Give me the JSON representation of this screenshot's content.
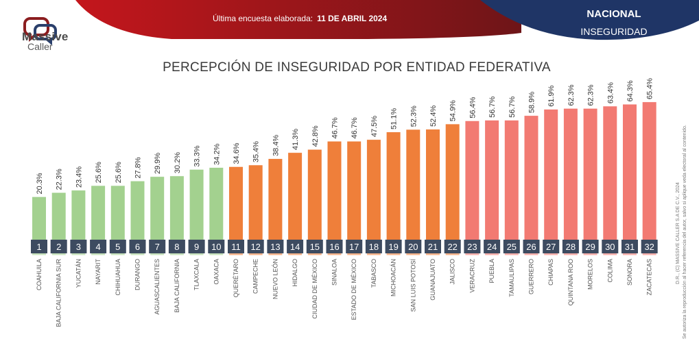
{
  "header": {
    "brand_line1": "Massive",
    "brand_line2": "Caller",
    "survey_label": "Última encuesta elaborada:",
    "survey_date": "11 DE ABRIL 2024",
    "scope": "NACIONAL",
    "topic": "INSEGURIDAD",
    "colors": {
      "red": "#b3171c",
      "navy": "#1f3566"
    }
  },
  "footer_note": {
    "line1": "D.R., (C) MASSIVE CALLER S.A DE C.V., 2024",
    "line2": "Se autoriza la reproducción al hacer referencia del autor, salvo si aplique veda electoral al contenido."
  },
  "chart_data": {
    "type": "bar",
    "title": "PERCEPCIÓN DE INSEGURIDAD POR ENTIDAD FEDERATIVA",
    "xlabel": "",
    "ylabel": "",
    "ylim": [
      0,
      70
    ],
    "grid": false,
    "value_suffix": "%",
    "color_groups": [
      {
        "from_rank": 1,
        "to_rank": 10,
        "color": "#a3d18f"
      },
      {
        "from_rank": 11,
        "to_rank": 22,
        "color": "#ef7f3a"
      },
      {
        "from_rank": 23,
        "to_rank": 32,
        "color": "#f27a72"
      }
    ],
    "rank_badge_color": "#3d4b60",
    "ranks": [
      "1",
      "2",
      "3",
      "4",
      "5",
      "6",
      "7",
      "8",
      "9",
      "10",
      "11",
      "12",
      "13",
      "14",
      "15",
      "16",
      "17",
      "18",
      "19",
      "20",
      "21",
      "22",
      "23",
      "24",
      "25",
      "26",
      "27",
      "28",
      "29",
      "30",
      "31",
      "32"
    ],
    "categories": [
      "COAHUILA",
      "BAJA CALIFORNIA SUR",
      "YUCATÁN",
      "NAYARIT",
      "CHIHUAHUA",
      "DURANGO",
      "AGUASCALIENTES",
      "BAJA CALIFORNIA",
      "TLAXCALA",
      "OAXACA",
      "QUERÉTARO",
      "CAMPECHE",
      "NUEVO LEÓN",
      "HIDALGO",
      "CIUDAD DE MÉXICO",
      "SINALOA",
      "ESTADO DE MÉXICO",
      "TABASCO",
      "MICHOACÁN",
      "SAN LUIS POTOSÍ",
      "GUANAJUATO",
      "JALISCO",
      "VERACRUZ",
      "PUEBLA",
      "TAMAULIPAS",
      "GUERRERO",
      "CHIAPAS",
      "QUINTANA ROO",
      "MORELOS",
      "COLIMA",
      "SONORA",
      "ZACATECAS"
    ],
    "values": [
      20.3,
      22.3,
      23.4,
      25.6,
      25.6,
      27.8,
      29.9,
      30.2,
      33.3,
      34.2,
      34.6,
      35.4,
      38.4,
      41.3,
      42.8,
      46.7,
      46.7,
      47.5,
      51.1,
      52.3,
      52.4,
      54.9,
      56.4,
      56.7,
      56.7,
      58.9,
      61.9,
      62.3,
      62.3,
      63.4,
      64.3,
      65.4
    ]
  }
}
